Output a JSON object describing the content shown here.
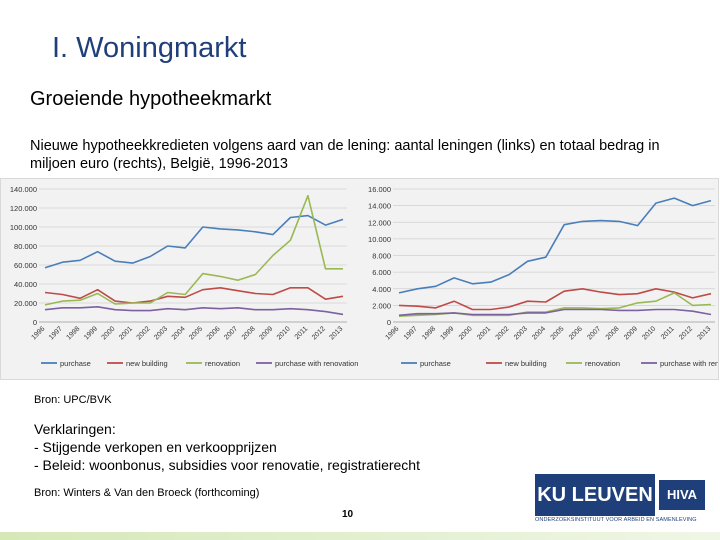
{
  "slide": {
    "title": "I. Woningmarkt",
    "subtitle": "Groeiende hypotheekmarkt",
    "description": "Nieuwe hypotheekkredieten volgens aard van de lening: aantal leningen (links) en totaal bedrag in miljoen euro (rechts), België, 1996-2013",
    "source1": "Bron: UPC/BVK",
    "explanation_title": "Verklaringen:",
    "explanation_items": [
      "-   Stijgende verkopen en verkoopprijzen",
      "-   Beleid: woonbonus, subsidies voor renovatie, registratierecht"
    ],
    "source2": "Bron: Winters & Van den Broeck (forthcoming)",
    "page_number": "10",
    "logo_ku": "KU LEUVEN",
    "logo_hva": "HIVA",
    "logo_strip": "ONDERZOEKSINSTITUUT VOOR ARBEID EN SAMENLEVING"
  },
  "colors": {
    "purchase": "#4a7ebb",
    "new_building": "#be4b48",
    "renovation": "#98b954",
    "purchase_with_renovation": "#7d60a0",
    "title": "#1f3f7a"
  },
  "chart_data": [
    {
      "type": "line",
      "x": [
        "1996",
        "1997",
        "1998",
        "1999",
        "2000",
        "2001",
        "2002",
        "2003",
        "2004",
        "2005",
        "2006",
        "2007",
        "2008",
        "2009",
        "2010",
        "2011",
        "2012",
        "2013"
      ],
      "ylim": [
        0,
        140000
      ],
      "yticks": [
        "0",
        "20.000",
        "40.000",
        "60.000",
        "80.000",
        "100.000",
        "120.000",
        "140.000"
      ],
      "ytick_values": [
        0,
        20000,
        40000,
        60000,
        80000,
        100000,
        120000,
        140000
      ],
      "series": [
        {
          "name": "purchase",
          "values": [
            57000,
            63000,
            65000,
            74000,
            64000,
            62000,
            69000,
            80000,
            78000,
            100000,
            98000,
            97000,
            95000,
            92000,
            110000,
            112000,
            102000,
            108000
          ]
        },
        {
          "name": "new building",
          "values": [
            31000,
            29000,
            25000,
            34000,
            22000,
            20000,
            22000,
            27000,
            26000,
            34000,
            36000,
            33000,
            30000,
            29000,
            36000,
            36000,
            24000,
            27000
          ]
        },
        {
          "name": "renovation",
          "values": [
            18000,
            22000,
            23000,
            30000,
            19000,
            20000,
            20000,
            31000,
            29000,
            51000,
            48000,
            44000,
            50000,
            70000,
            86000,
            133000,
            56000,
            56000
          ]
        },
        {
          "name": "purchase with renovation",
          "values": [
            13000,
            15000,
            15000,
            16000,
            13000,
            12000,
            12000,
            14000,
            13000,
            15000,
            14000,
            15000,
            13000,
            13000,
            14000,
            13000,
            11000,
            8000
          ]
        }
      ]
    },
    {
      "type": "line",
      "x": [
        "1996",
        "1997",
        "1998",
        "1999",
        "2000",
        "2001",
        "2002",
        "2003",
        "2004",
        "2005",
        "2006",
        "2007",
        "2008",
        "2009",
        "2010",
        "2011",
        "2012",
        "2013"
      ],
      "ylim": [
        0,
        16000
      ],
      "yticks": [
        "0",
        "2.000",
        "4.000",
        "6.000",
        "8.000",
        "10.000",
        "12.000",
        "14.000",
        "16.000"
      ],
      "ytick_values": [
        0,
        2000,
        4000,
        6000,
        8000,
        10000,
        12000,
        14000,
        16000
      ],
      "series": [
        {
          "name": "purchase",
          "values": [
            3500,
            4000,
            4300,
            5300,
            4600,
            4800,
            5700,
            7300,
            7800,
            11700,
            12100,
            12200,
            12100,
            11600,
            14300,
            14900,
            14000,
            14600
          ]
        },
        {
          "name": "new building",
          "values": [
            2000,
            1900,
            1700,
            2500,
            1500,
            1500,
            1800,
            2500,
            2400,
            3700,
            4000,
            3600,
            3300,
            3400,
            4000,
            3600,
            2900,
            3400
          ]
        },
        {
          "name": "renovation",
          "values": [
            700,
            800,
            900,
            1100,
            800,
            800,
            800,
            1200,
            1200,
            1700,
            1700,
            1600,
            1700,
            2300,
            2500,
            3500,
            2000,
            2100
          ]
        },
        {
          "name": "purchase with renovation",
          "values": [
            800,
            1000,
            1000,
            1100,
            900,
            900,
            900,
            1100,
            1100,
            1500,
            1500,
            1500,
            1400,
            1400,
            1500,
            1500,
            1300,
            900
          ]
        }
      ]
    }
  ]
}
